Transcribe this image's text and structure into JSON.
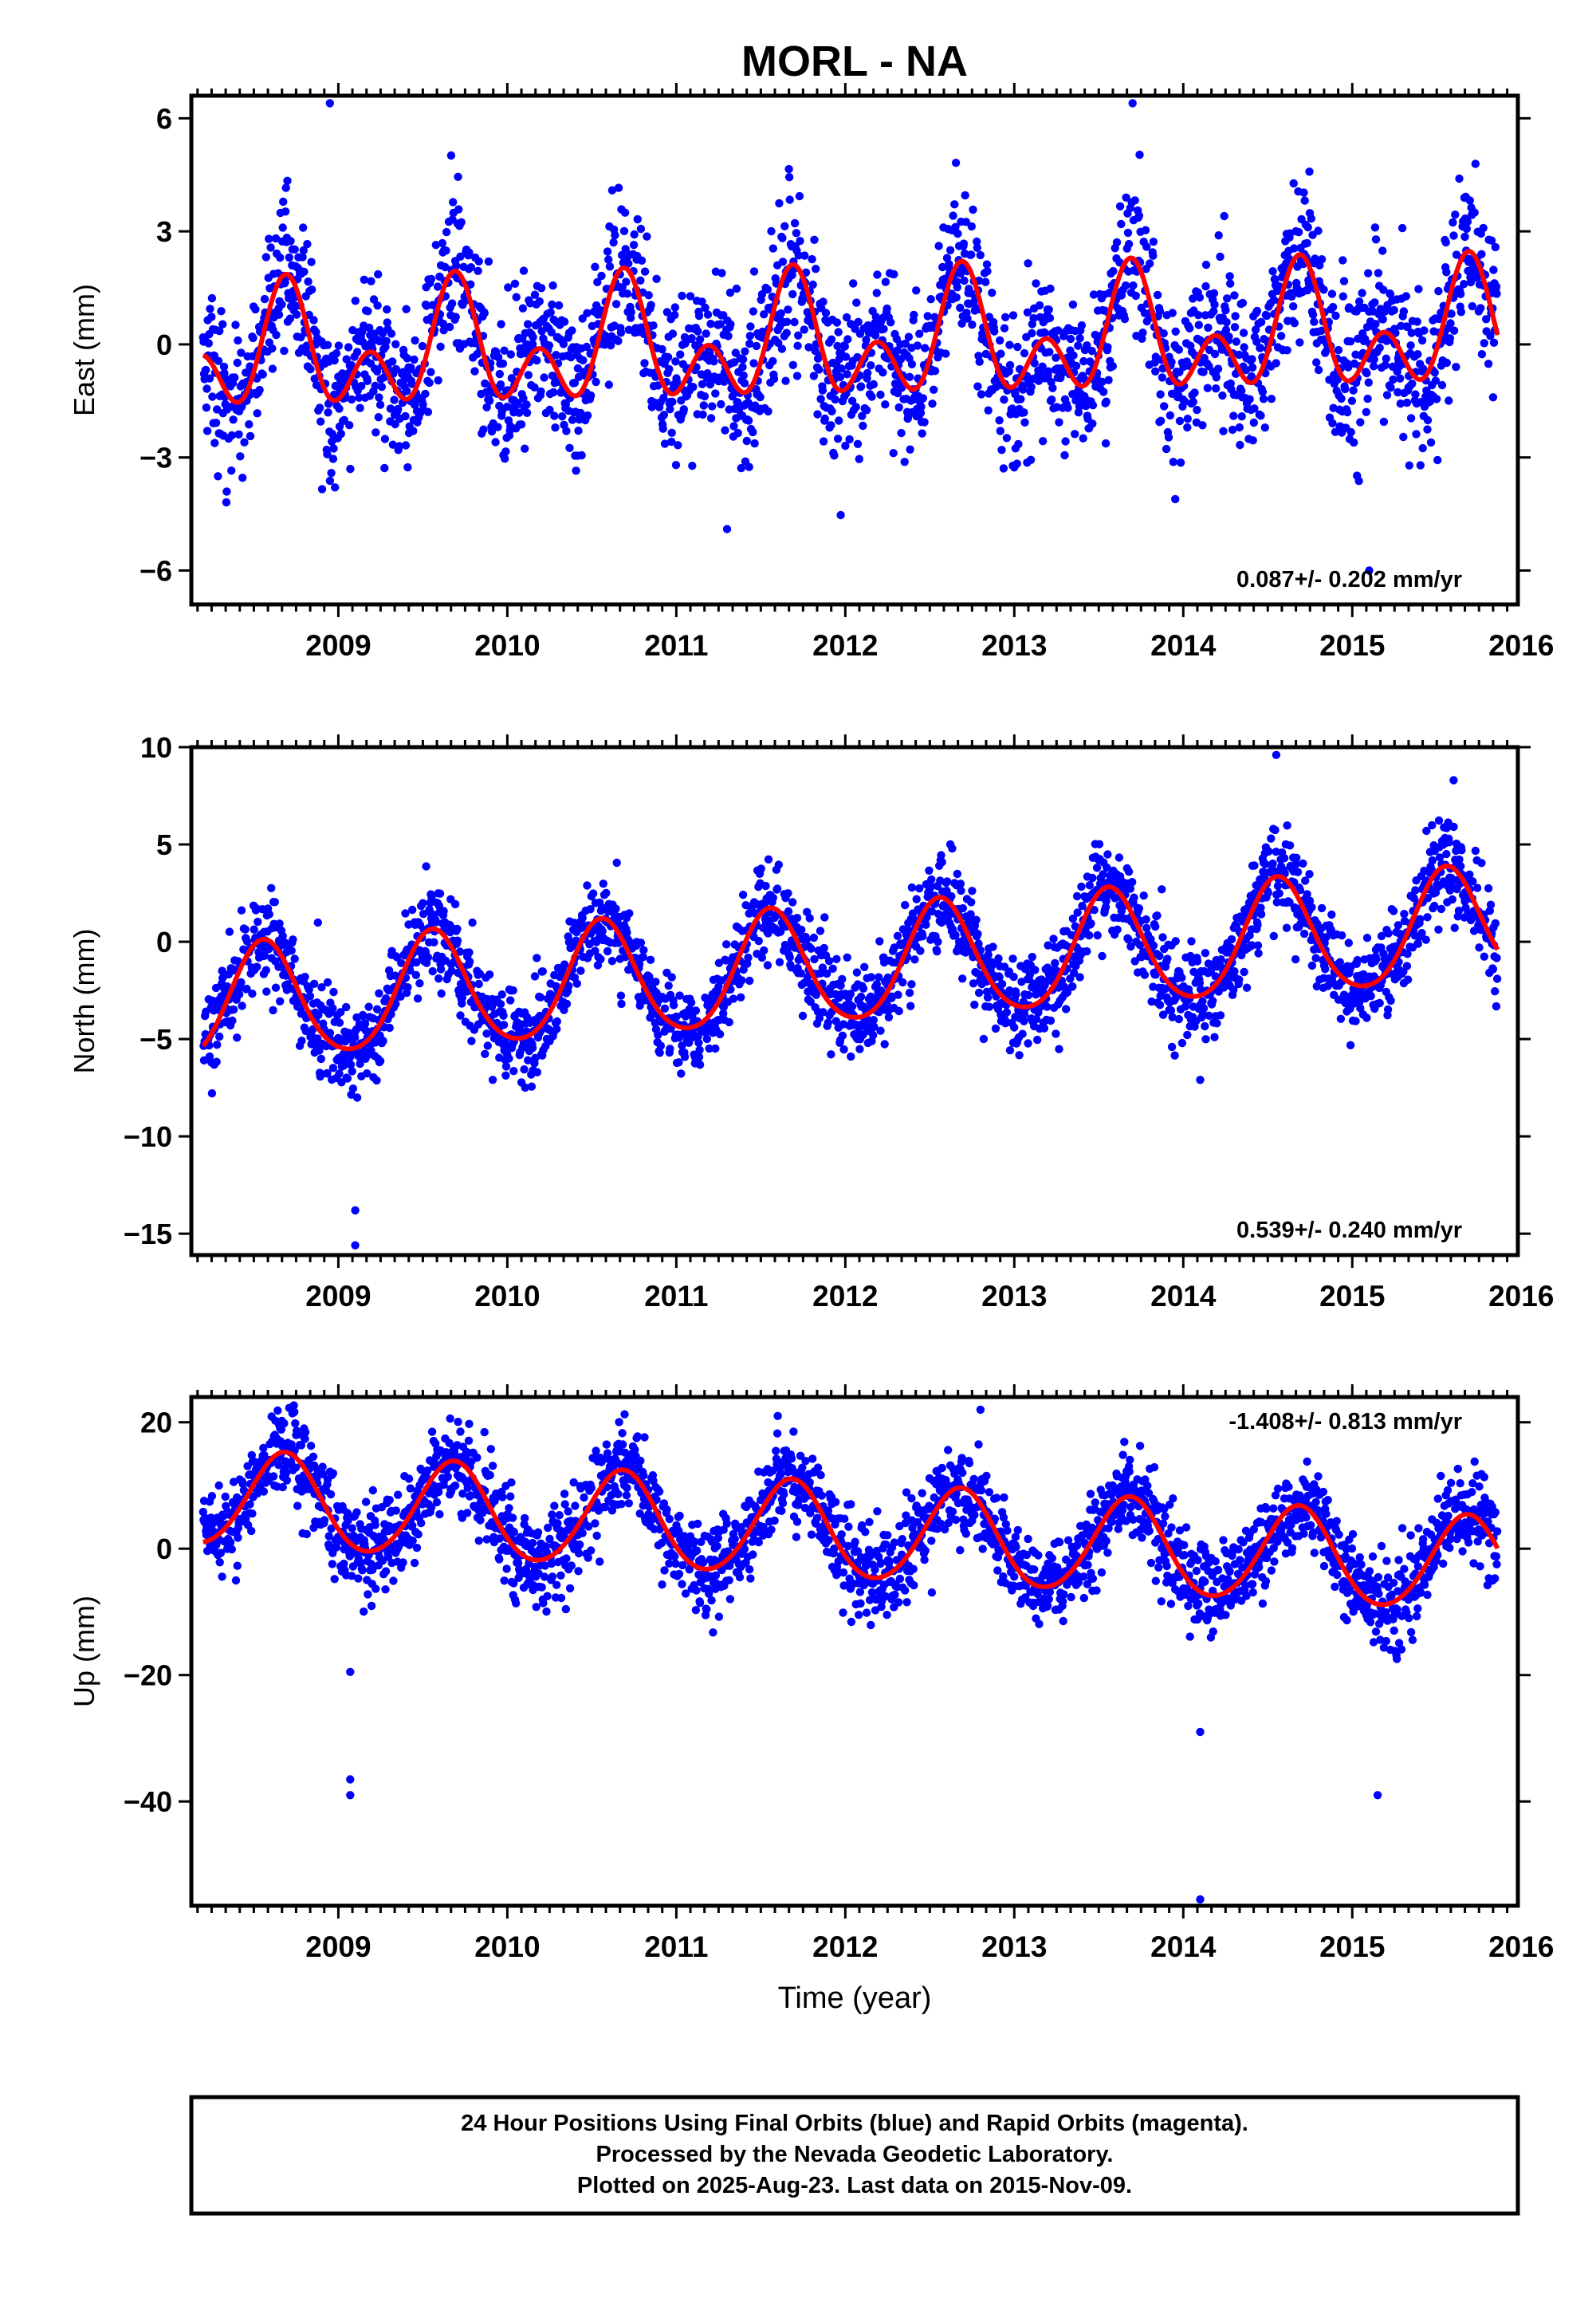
{
  "page": {
    "title": "MORL - NA"
  },
  "x_axis": {
    "label": "Time (year)",
    "range": [
      2008.13,
      2015.98
    ],
    "major_ticks": [
      2009,
      2010,
      2011,
      2012,
      2013,
      2014,
      2015,
      2016
    ],
    "tick_labels": [
      "2009",
      "2010",
      "2011",
      "2012",
      "2013",
      "2014",
      "2015",
      "2016"
    ]
  },
  "caption": {
    "lines": [
      "24 Hour Positions Using Final Orbits (blue) and Rapid Orbits (magenta).",
      "Processed by the Nevada Geodetic Laboratory.",
      "Plotted on 2025-Aug-23. Last data on 2015-Nov-09."
    ]
  },
  "colors": {
    "observations": "#0000ff",
    "model": "#ff0000",
    "frame": "#000000"
  },
  "chart_data": [
    {
      "type": "scatter",
      "name": "east",
      "ylabel": "East (mm)",
      "ylim": [
        -6.9,
        6.6
      ],
      "yticks": [
        -6,
        -3,
        0,
        3,
        6
      ],
      "ytick_labels": [
        "−6",
        "−3",
        "0",
        "3",
        "6"
      ],
      "trend_text": "0.087+/- 0.202 mm/yr",
      "trend_position": "bottom-right",
      "data_start": 2008.2,
      "data_end": 2015.86,
      "trend_mm_per_yr": 0.087,
      "model": {
        "offset": 0.0,
        "annual": {
          "amplitude": 1.05,
          "peak_phase": 0.69
        },
        "semiannual": {
          "amplitude": 1.1,
          "peak_phase": 0.19
        }
      },
      "scatter_sigma": 1.05,
      "outliers": [
        [
          2008.95,
          6.4
        ],
        [
          2013.7,
          6.4
        ],
        [
          2011.3,
          -4.9
        ],
        [
          2015.1,
          -6.0
        ]
      ],
      "series": [
        {
          "name": "Final Orbits",
          "role": "points",
          "color": "#0000ff"
        },
        {
          "name": "Model",
          "role": "line",
          "color": "#ff0000"
        }
      ]
    },
    {
      "type": "scatter",
      "name": "north",
      "ylabel": "North (mm)",
      "ylim": [
        -16.1,
        10.0
      ],
      "yticks": [
        -15,
        -10,
        -5,
        0,
        5,
        10
      ],
      "ytick_labels": [
        "−15",
        "−10",
        "−5",
        "0",
        "5",
        "10"
      ],
      "trend_text": "0.539+/- 0.240 mm/yr",
      "trend_position": "bottom-right",
      "data_start": 2008.2,
      "data_end": 2015.86,
      "trend_mm_per_yr": 0.539,
      "model": {
        "offset": -1.3,
        "annual": {
          "amplitude": 2.95,
          "peak_phase": 0.56
        },
        "semiannual": {
          "amplitude": 0.35,
          "peak_phase": 0.55
        }
      },
      "scatter_sigma": 1.2,
      "outliers": [
        [
          2009.1,
          -13.8
        ],
        [
          2009.1,
          -15.6
        ],
        [
          2014.55,
          9.6
        ],
        [
          2015.6,
          8.3
        ],
        [
          2014.1,
          -7.1
        ]
      ],
      "series": [
        {
          "name": "Final Orbits",
          "role": "points",
          "color": "#0000ff"
        },
        {
          "name": "Model",
          "role": "line",
          "color": "#ff0000"
        }
      ]
    },
    {
      "type": "scatter",
      "name": "up",
      "ylabel": "Up (mm)",
      "ylim": [
        -56.5,
        24.0
      ],
      "yticks": [
        -40,
        -20,
        0,
        20
      ],
      "ytick_labels": [
        "−40",
        "−20",
        "0",
        "20"
      ],
      "trend_text": "-1.408+/- 0.813 mm/yr",
      "trend_position": "top-right",
      "data_start": 2008.2,
      "data_end": 2015.86,
      "trend_mm_per_yr": -1.408,
      "model": {
        "offset": 2.5,
        "annual": {
          "amplitude": 7.5,
          "peak_phase": 0.68
        },
        "semiannual": {
          "amplitude": 0.6,
          "peak_phase": 0.2
        }
      },
      "scatter_sigma": 3.6,
      "outliers": [
        [
          2009.07,
          -36.5
        ],
        [
          2009.07,
          -39.0
        ],
        [
          2009.07,
          -19.5
        ],
        [
          2014.1,
          -55.5
        ],
        [
          2014.1,
          -29.0
        ],
        [
          2015.15,
          -39.0
        ],
        [
          2012.8,
          22.0
        ],
        [
          2011.6,
          21.0
        ]
      ],
      "series": [
        {
          "name": "Final Orbits",
          "role": "points",
          "color": "#0000ff"
        },
        {
          "name": "Model",
          "role": "line",
          "color": "#ff0000"
        }
      ]
    }
  ]
}
